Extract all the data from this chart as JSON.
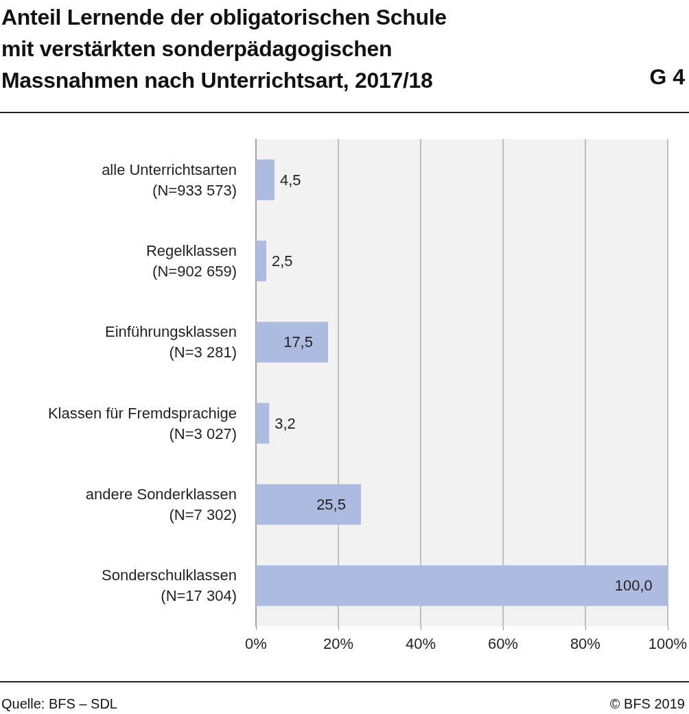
{
  "chart_data": {
    "type": "bar",
    "orientation": "horizontal",
    "title": "Anteil Lernende der obligatorischen Schule\nmit verstärkten sonderpädagogischen\nMassnahmen nach Unterrichtsart, 2017/18",
    "categories": [
      "alle Unterrichtsarten\n(N=933 573)",
      "Regelklassen\n(N=902 659)",
      "Einführungsklassen\n(N=3 281)",
      "Klassen für Fremdsprachige\n(N=3 027)",
      "andere Sonderklassen\n(N=7 302)",
      "Sonderschulklassen\n(N=17 304)"
    ],
    "values": [
      4.5,
      2.5,
      17.5,
      3.2,
      25.5,
      100.0
    ],
    "value_labels": [
      "4,5",
      "2,5",
      "17,5",
      "3,2",
      "25,5",
      "100,0"
    ],
    "color": "#aebbe1",
    "xlim": [
      0,
      100
    ],
    "xticks": [
      {
        "value": 0,
        "label": "0%"
      },
      {
        "value": 20,
        "label": "20%"
      },
      {
        "value": 40,
        "label": "40%"
      },
      {
        "value": 60,
        "label": "60%"
      },
      {
        "value": 80,
        "label": "80%"
      },
      {
        "value": 100,
        "label": "100%"
      }
    ],
    "grid": "x",
    "annotations": [
      "G 4",
      "Quelle: BFS – SDL",
      "© BFS 2019"
    ]
  }
}
